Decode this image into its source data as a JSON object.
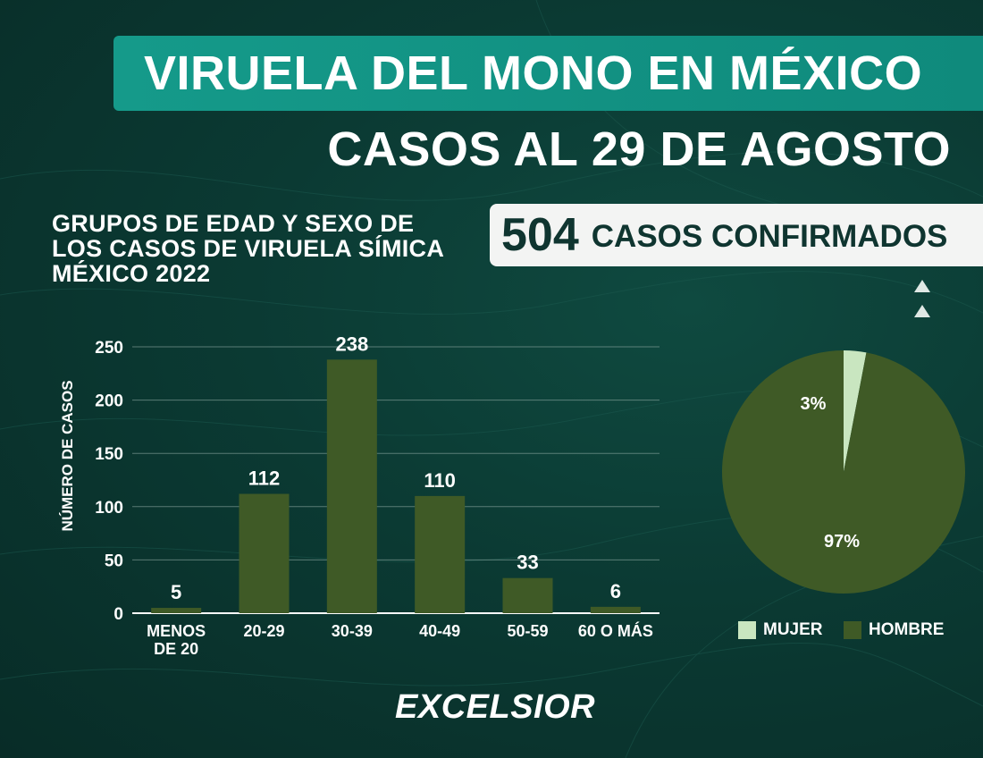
{
  "header": {
    "title": "VIRUELA DEL MONO EN MÉXICO",
    "subtitle": "CASOS AL 29 DE AGOSTO"
  },
  "chart_heading": {
    "lines": [
      "GRUPOS DE EDAD Y SEXO DE",
      "LOS CASOS DE VIRUELA SÍMICA",
      "MÉXICO 2022"
    ]
  },
  "total": {
    "number": "504",
    "label": "CASOS CONFIRMADOS"
  },
  "brand": "EXCELSIOR",
  "colors": {
    "bar": "#3f5a26",
    "pie_hombre": "#3f5a26",
    "pie_mujer": "#c9e6c0",
    "accent_teal": "#159a8a",
    "background": "#0b3a33"
  },
  "chart_data": [
    {
      "type": "bar",
      "categories": [
        "MENOS DE 20",
        "20-29",
        "30-39",
        "40-49",
        "50-59",
        "60 O MÁS"
      ],
      "category_lines": [
        [
          "MENOS",
          "DE 20"
        ],
        [
          "20-29"
        ],
        [
          "30-39"
        ],
        [
          "40-49"
        ],
        [
          "50-59"
        ],
        [
          "60 O MÁS"
        ]
      ],
      "values": [
        5,
        112,
        238,
        110,
        33,
        6
      ],
      "data_labels": [
        "5",
        "112",
        "238",
        "110",
        "33",
        "6"
      ],
      "ylabel": "NÚMERO DE CASOS",
      "ylim": [
        0,
        250
      ],
      "yticks": [
        0,
        50,
        100,
        150,
        200,
        250
      ],
      "grid": true
    },
    {
      "type": "pie",
      "slices": [
        {
          "label": "MUJER",
          "value": 3,
          "display": "3%"
        },
        {
          "label": "HOMBRE",
          "value": 97,
          "display": "97%"
        }
      ],
      "legend": "bottom"
    }
  ]
}
